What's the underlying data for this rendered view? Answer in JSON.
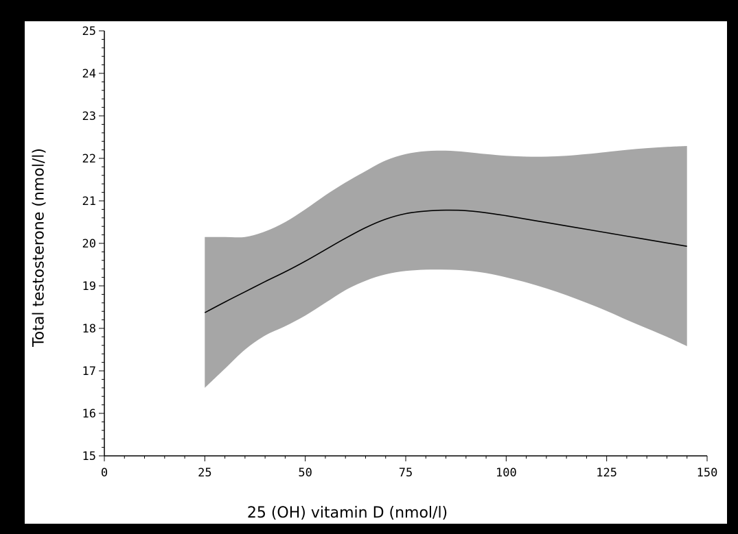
{
  "chart_data": {
    "type": "line",
    "title": "",
    "xlabel": "25 (OH) vitamin D (nmol/l)",
    "ylabel": "Total testosterone (nmol/l)",
    "xlim": [
      0,
      150
    ],
    "ylim": [
      15,
      25
    ],
    "x_ticks": [
      0,
      25,
      50,
      75,
      100,
      125,
      150
    ],
    "y_ticks": [
      15,
      16,
      17,
      18,
      19,
      20,
      21,
      22,
      23,
      24,
      25
    ],
    "grid": false,
    "legend": "none",
    "colors": {
      "line": "#000000",
      "band": "#a6a6a6",
      "background": "#ffffff",
      "frame": "#000000"
    },
    "series": [
      {
        "x": [
          25,
          30,
          35,
          40,
          45,
          50,
          55,
          60,
          65,
          70,
          75,
          80,
          85,
          90,
          95,
          100,
          105,
          110,
          115,
          120,
          125,
          130,
          135,
          140,
          145
        ],
        "estimate": [
          18.37,
          18.62,
          18.86,
          19.1,
          19.33,
          19.58,
          19.85,
          20.12,
          20.37,
          20.57,
          20.7,
          20.76,
          20.78,
          20.77,
          20.72,
          20.65,
          20.57,
          20.49,
          20.41,
          20.33,
          20.25,
          20.17,
          20.09,
          20.01,
          19.93
        ],
        "lower": [
          16.6,
          17.05,
          17.5,
          17.83,
          18.05,
          18.3,
          18.6,
          18.9,
          19.12,
          19.27,
          19.35,
          19.38,
          19.38,
          19.36,
          19.3,
          19.2,
          19.08,
          18.94,
          18.78,
          18.6,
          18.41,
          18.2,
          18.0,
          17.8,
          17.58
        ],
        "upper": [
          20.15,
          20.15,
          20.15,
          20.28,
          20.5,
          20.8,
          21.13,
          21.43,
          21.7,
          21.95,
          22.1,
          22.17,
          22.18,
          22.15,
          22.1,
          22.06,
          22.04,
          22.04,
          22.06,
          22.1,
          22.15,
          22.2,
          22.24,
          22.27,
          22.29
        ]
      }
    ]
  }
}
